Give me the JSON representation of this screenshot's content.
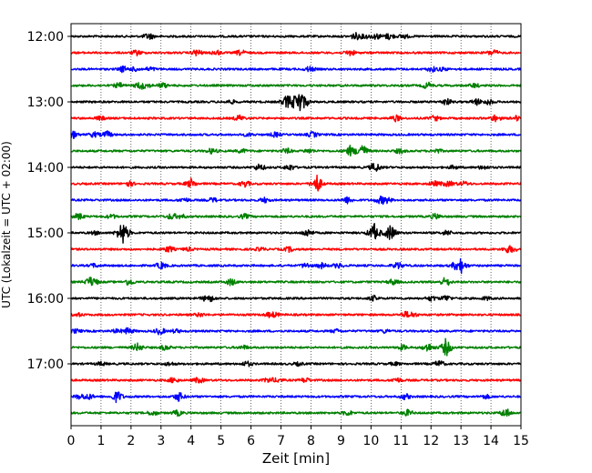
{
  "chart_data": {
    "type": "line",
    "title": "",
    "xlabel": "Zeit  [min]",
    "ylabel": "UTC (Lokalzeit = UTC + 02:00)",
    "xlim": [
      0,
      15
    ],
    "xticks": [
      "0",
      "1",
      "2",
      "3",
      "4",
      "5",
      "6",
      "7",
      "8",
      "9",
      "10",
      "11",
      "12",
      "13",
      "14",
      "15"
    ],
    "ytick_labels": [
      "12:00",
      "13:00",
      "14:00",
      "15:00",
      "16:00",
      "17:00"
    ],
    "grid": "vertical dotted",
    "trace_colors": [
      "#000000",
      "#ff0000",
      "#0000ff",
      "#008000"
    ],
    "rows_per_hour": 4,
    "row_start_labels": [
      "12:00",
      "12:15",
      "12:30",
      "12:45",
      "13:00",
      "13:15",
      "13:30",
      "13:45",
      "14:00",
      "14:15",
      "14:30",
      "14:45",
      "15:00",
      "15:15",
      "15:30",
      "15:45",
      "16:00",
      "16:15",
      "16:30",
      "16:45",
      "17:00",
      "17:15",
      "17:30",
      "17:45"
    ],
    "events": [
      {
        "row": 4,
        "t": 7.6,
        "amp": 1.0
      },
      {
        "row": 4,
        "t": 7.2,
        "amp": 0.6
      },
      {
        "row": 7,
        "t": 9.7,
        "amp": 0.7
      },
      {
        "row": 7,
        "t": 9.3,
        "amp": 0.4
      },
      {
        "row": 9,
        "t": 8.2,
        "amp": 0.8
      },
      {
        "row": 9,
        "t": 4.0,
        "amp": 0.4
      },
      {
        "row": 12,
        "t": 1.7,
        "amp": 1.0
      },
      {
        "row": 12,
        "t": 10.1,
        "amp": 0.8
      },
      {
        "row": 12,
        "t": 10.6,
        "amp": 0.5
      },
      {
        "row": 14,
        "t": 13.0,
        "amp": 0.6
      },
      {
        "row": 14,
        "t": 10.9,
        "amp": 0.3
      },
      {
        "row": 15,
        "t": 0.6,
        "amp": 0.3
      },
      {
        "row": 18,
        "t": 1.9,
        "amp": 0.3
      },
      {
        "row": 19,
        "t": 12.5,
        "amp": 0.6
      },
      {
        "row": 19,
        "t": 11.9,
        "amp": 0.4
      },
      {
        "row": 22,
        "t": 3.6,
        "amp": 0.4
      }
    ]
  }
}
